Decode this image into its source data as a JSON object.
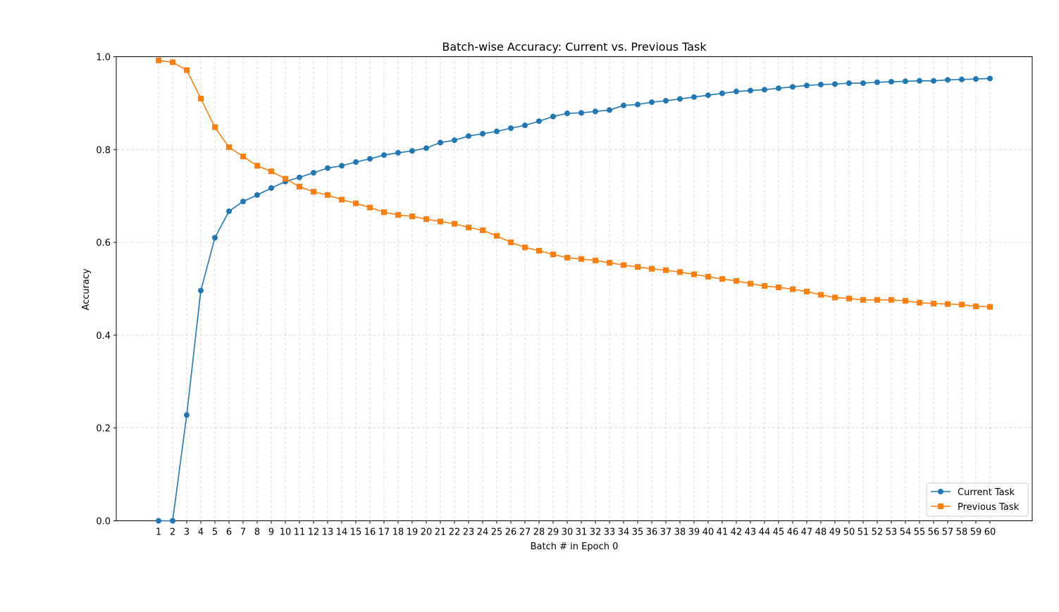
{
  "chart_data": {
    "type": "line",
    "title": "Batch-wise Accuracy: Current vs. Previous Task",
    "xlabel": "Batch # in Epoch 0",
    "ylabel": "Accuracy",
    "ylim": [
      0,
      1
    ],
    "yticks": [
      "0.0",
      "0.2",
      "0.4",
      "0.6",
      "0.8",
      "1.0"
    ],
    "x": [
      1,
      2,
      3,
      4,
      5,
      6,
      7,
      8,
      9,
      10,
      11,
      12,
      13,
      14,
      15,
      16,
      17,
      18,
      19,
      20,
      21,
      22,
      23,
      24,
      25,
      26,
      27,
      28,
      29,
      30,
      31,
      32,
      33,
      34,
      35,
      36,
      37,
      38,
      39,
      40,
      41,
      42,
      43,
      44,
      45,
      46,
      47,
      48,
      49,
      50,
      51,
      52,
      53,
      54,
      55,
      56,
      57,
      58,
      59,
      60
    ],
    "grid": true,
    "legend_position": "lower-right",
    "series": [
      {
        "name": "Current Task",
        "color": "#1f77b4",
        "marker": "circle",
        "values": [
          0.0,
          0.0,
          0.228,
          0.496,
          0.61,
          0.667,
          0.688,
          0.702,
          0.717,
          0.731,
          0.74,
          0.75,
          0.76,
          0.765,
          0.773,
          0.78,
          0.788,
          0.793,
          0.797,
          0.803,
          0.815,
          0.82,
          0.829,
          0.834,
          0.839,
          0.846,
          0.852,
          0.861,
          0.871,
          0.878,
          0.879,
          0.882,
          0.885,
          0.895,
          0.897,
          0.902,
          0.905,
          0.909,
          0.913,
          0.917,
          0.921,
          0.925,
          0.927,
          0.929,
          0.932,
          0.935,
          0.938,
          0.94,
          0.941,
          0.943,
          0.943,
          0.945,
          0.946,
          0.947,
          0.948,
          0.948,
          0.95,
          0.951,
          0.952,
          0.953
        ]
      },
      {
        "name": "Previous Task",
        "color": "#ff7f0e",
        "marker": "square",
        "values": [
          0.992,
          0.988,
          0.971,
          0.91,
          0.848,
          0.805,
          0.785,
          0.765,
          0.753,
          0.737,
          0.72,
          0.709,
          0.702,
          0.692,
          0.684,
          0.675,
          0.665,
          0.659,
          0.656,
          0.65,
          0.645,
          0.64,
          0.632,
          0.626,
          0.614,
          0.6,
          0.589,
          0.582,
          0.574,
          0.567,
          0.564,
          0.561,
          0.556,
          0.551,
          0.547,
          0.543,
          0.54,
          0.536,
          0.531,
          0.526,
          0.521,
          0.517,
          0.511,
          0.506,
          0.503,
          0.499,
          0.494,
          0.487,
          0.481,
          0.479,
          0.476,
          0.476,
          0.476,
          0.474,
          0.47,
          0.468,
          0.467,
          0.466,
          0.462,
          0.461
        ]
      }
    ]
  }
}
